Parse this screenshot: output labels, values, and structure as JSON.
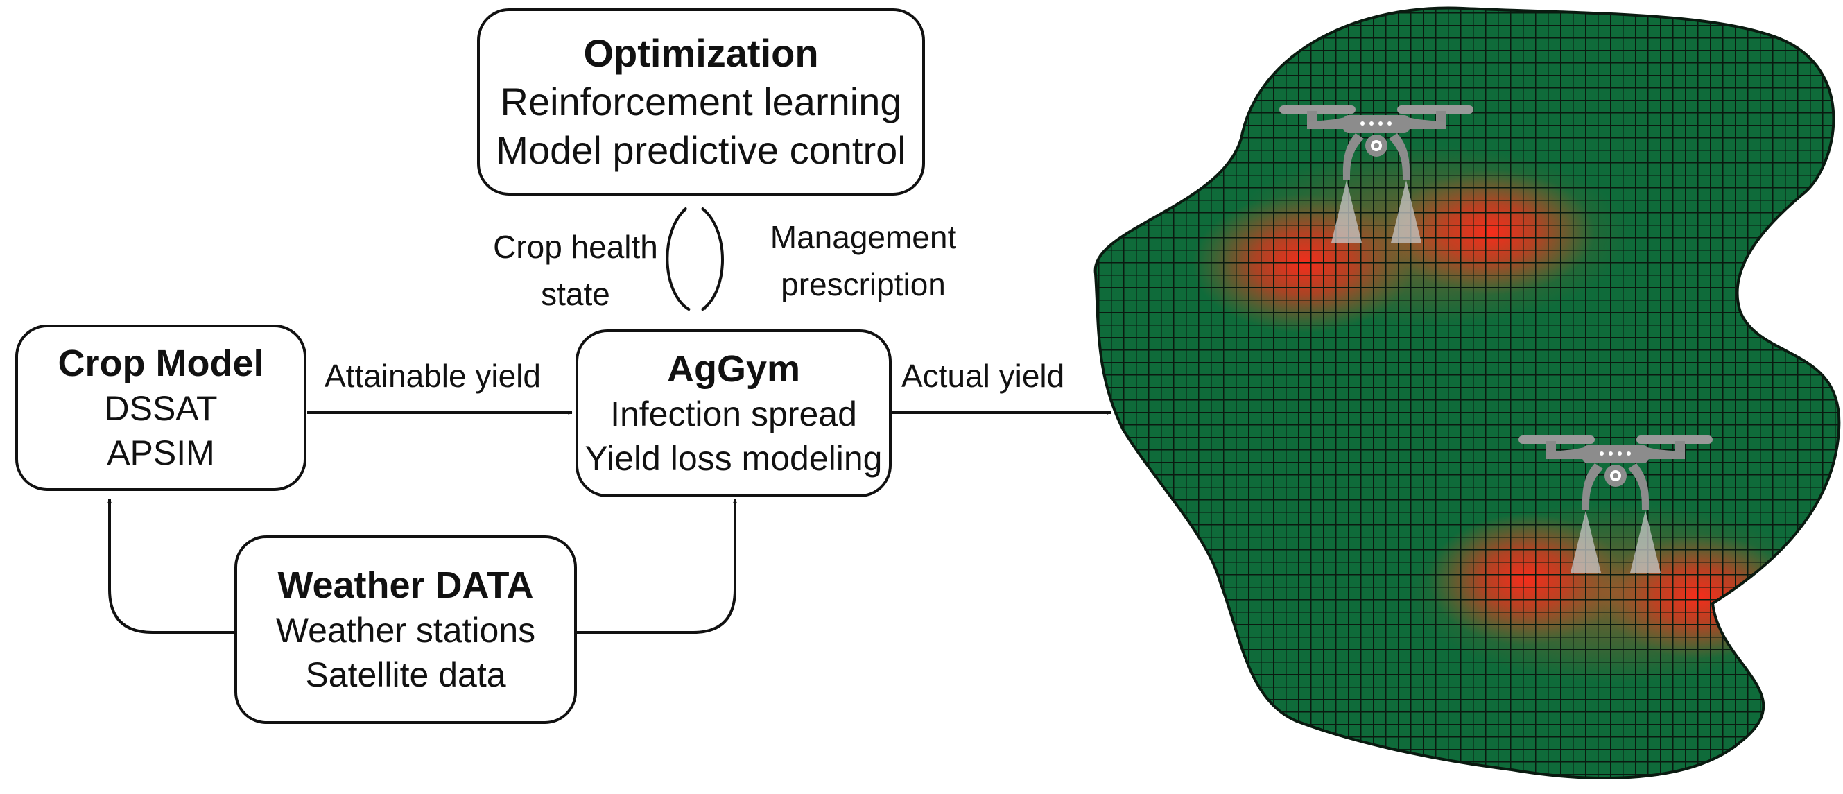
{
  "nodes": {
    "optimization": {
      "title": "Optimization",
      "lines": [
        "Reinforcement learning",
        "Model predictive control"
      ]
    },
    "crop_model": {
      "title": "Crop Model",
      "lines": [
        "DSSAT",
        "APSIM"
      ]
    },
    "aggym": {
      "title": "AgGym",
      "lines": [
        "Infection spread",
        "Yield loss modeling"
      ]
    },
    "weather": {
      "title": "Weather DATA",
      "lines": [
        "Weather stations",
        "Satellite data"
      ]
    }
  },
  "edges": {
    "crop_to_aggym": "Attainable yield",
    "aggym_to_field": "Actual yield",
    "aggym_to_optimization": [
      "Crop health",
      "state"
    ],
    "optimization_to_aggym": [
      "Management",
      "prescription"
    ]
  },
  "colors": {
    "field": "#0f6b3a",
    "grid": "#0a1a10",
    "infection": "#e8231e",
    "drone": "#8c8c8c",
    "stroke": "#111111"
  },
  "icons": [
    "drone-icon"
  ]
}
